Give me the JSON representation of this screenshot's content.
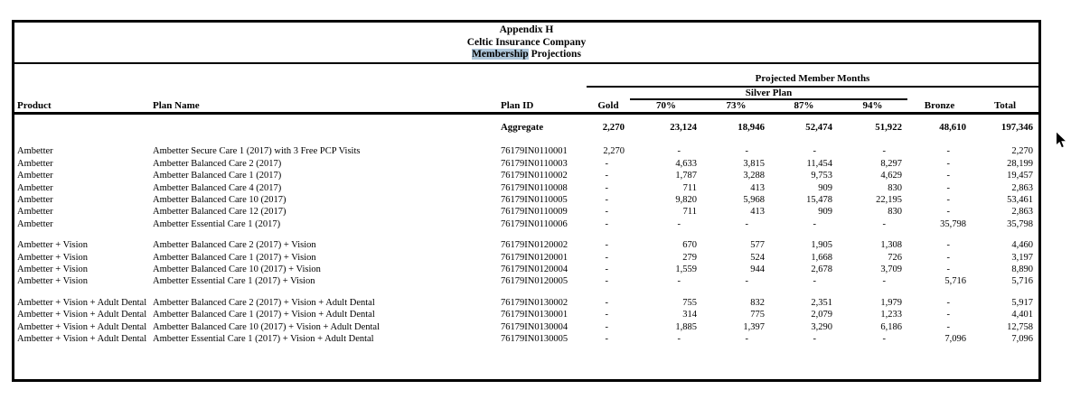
{
  "title": {
    "line1": "Appendix H",
    "line2": "Celtic Insurance Company",
    "line3_highlighted_word": "Membership",
    "line3_remainder": " Projections"
  },
  "colors": {
    "selection_highlight": "#adc6d9"
  },
  "icons": {
    "mouse_cursor": "arrow-pointer"
  },
  "table": {
    "span_headers": {
      "projected": "Projected Member Months",
      "silver": "Silver Plan"
    },
    "columns": {
      "product": "Product",
      "plan_name": "Plan Name",
      "plan_id": "Plan ID",
      "gold": "Gold",
      "p70": "70%",
      "p73": "73%",
      "p87": "87%",
      "p94": "94%",
      "bronze": "Bronze",
      "total": "Total"
    },
    "aggregate": {
      "label": "Aggregate",
      "gold": "2,270",
      "p70": "23,124",
      "p73": "18,946",
      "p87": "52,474",
      "p94": "51,922",
      "bronze": "48,610",
      "total": "197,346"
    },
    "groups": [
      {
        "rows": [
          {
            "product": "Ambetter",
            "plan_name": "Ambetter Secure Care 1 (2017) with 3 Free PCP Visits",
            "plan_id": "76179IN0110001",
            "gold": "2,270",
            "p70": "-",
            "p73": "-",
            "p87": "-",
            "p94": "-",
            "bronze": "-",
            "total": "2,270"
          },
          {
            "product": "Ambetter",
            "plan_name": "Ambetter Balanced Care 2 (2017)",
            "plan_id": "76179IN0110003",
            "gold": "-",
            "p70": "4,633",
            "p73": "3,815",
            "p87": "11,454",
            "p94": "8,297",
            "bronze": "-",
            "total": "28,199"
          },
          {
            "product": "Ambetter",
            "plan_name": "Ambetter Balanced Care 1 (2017)",
            "plan_id": "76179IN0110002",
            "gold": "-",
            "p70": "1,787",
            "p73": "3,288",
            "p87": "9,753",
            "p94": "4,629",
            "bronze": "-",
            "total": "19,457"
          },
          {
            "product": "Ambetter",
            "plan_name": "Ambetter Balanced Care 4 (2017)",
            "plan_id": "76179IN0110008",
            "gold": "-",
            "p70": "711",
            "p73": "413",
            "p87": "909",
            "p94": "830",
            "bronze": "-",
            "total": "2,863"
          },
          {
            "product": "Ambetter",
            "plan_name": "Ambetter Balanced Care 10 (2017)",
            "plan_id": "76179IN0110005",
            "gold": "-",
            "p70": "9,820",
            "p73": "5,968",
            "p87": "15,478",
            "p94": "22,195",
            "bronze": "-",
            "total": "53,461"
          },
          {
            "product": "Ambetter",
            "plan_name": "Ambetter Balanced Care 12 (2017)",
            "plan_id": "76179IN0110009",
            "gold": "-",
            "p70": "711",
            "p73": "413",
            "p87": "909",
            "p94": "830",
            "bronze": "-",
            "total": "2,863"
          },
          {
            "product": "Ambetter",
            "plan_name": "Ambetter Essential Care 1 (2017)",
            "plan_id": "76179IN0110006",
            "gold": "-",
            "p70": "-",
            "p73": "-",
            "p87": "-",
            "p94": "-",
            "bronze": "35,798",
            "total": "35,798"
          }
        ]
      },
      {
        "rows": [
          {
            "product": "Ambetter + Vision",
            "plan_name": "Ambetter Balanced Care 2 (2017) + Vision",
            "plan_id": "76179IN0120002",
            "gold": "-",
            "p70": "670",
            "p73": "577",
            "p87": "1,905",
            "p94": "1,308",
            "bronze": "-",
            "total": "4,460"
          },
          {
            "product": "Ambetter + Vision",
            "plan_name": "Ambetter Balanced Care 1 (2017) + Vision",
            "plan_id": "76179IN0120001",
            "gold": "-",
            "p70": "279",
            "p73": "524",
            "p87": "1,668",
            "p94": "726",
            "bronze": "-",
            "total": "3,197"
          },
          {
            "product": "Ambetter + Vision",
            "plan_name": "Ambetter Balanced Care 10 (2017) + Vision",
            "plan_id": "76179IN0120004",
            "gold": "-",
            "p70": "1,559",
            "p73": "944",
            "p87": "2,678",
            "p94": "3,709",
            "bronze": "-",
            "total": "8,890"
          },
          {
            "product": "Ambetter + Vision",
            "plan_name": "Ambetter Essential Care 1 (2017) + Vision",
            "plan_id": "76179IN0120005",
            "gold": "-",
            "p70": "-",
            "p73": "-",
            "p87": "-",
            "p94": "-",
            "bronze": "5,716",
            "total": "5,716"
          }
        ]
      },
      {
        "rows": [
          {
            "product": "Ambetter + Vision + Adult Dental",
            "plan_name": "Ambetter Balanced Care 2 (2017) + Vision + Adult Dental",
            "plan_id": "76179IN0130002",
            "gold": "-",
            "p70": "755",
            "p73": "832",
            "p87": "2,351",
            "p94": "1,979",
            "bronze": "-",
            "total": "5,917"
          },
          {
            "product": "Ambetter + Vision + Adult Dental",
            "plan_name": "Ambetter Balanced Care 1 (2017) + Vision + Adult Dental",
            "plan_id": "76179IN0130001",
            "gold": "-",
            "p70": "314",
            "p73": "775",
            "p87": "2,079",
            "p94": "1,233",
            "bronze": "-",
            "total": "4,401"
          },
          {
            "product": "Ambetter + Vision + Adult Dental",
            "plan_name": "Ambetter Balanced Care 10 (2017) + Vision + Adult Dental",
            "plan_id": "76179IN0130004",
            "gold": "-",
            "p70": "1,885",
            "p73": "1,397",
            "p87": "3,290",
            "p94": "6,186",
            "bronze": "-",
            "total": "12,758"
          },
          {
            "product": "Ambetter + Vision + Adult Dental",
            "plan_name": "Ambetter Essential Care 1 (2017) + Vision + Adult Dental",
            "plan_id": "76179IN0130005",
            "gold": "-",
            "p70": "-",
            "p73": "-",
            "p87": "-",
            "p94": "-",
            "bronze": "7,096",
            "total": "7,096"
          }
        ]
      }
    ]
  }
}
